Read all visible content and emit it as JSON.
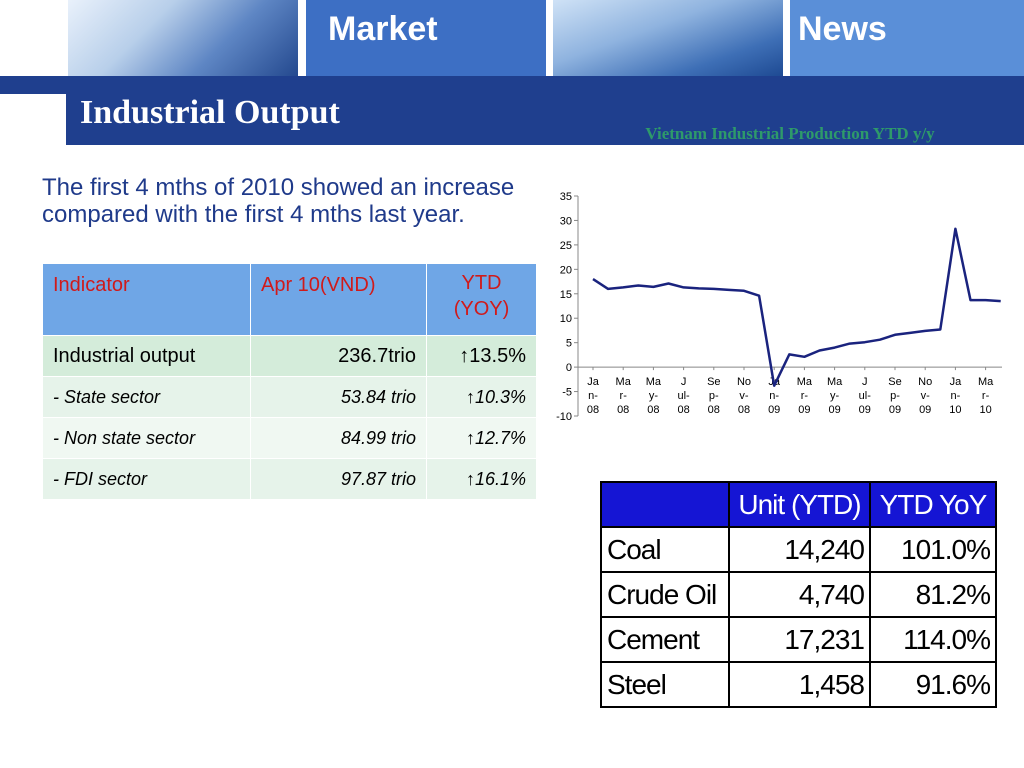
{
  "header": {
    "market_word": "Market",
    "news_word": "News",
    "title": "Industrial Output"
  },
  "intro_text": "The first 4 mths of 2010 showed an increase compared with the first 4 mths last year.",
  "indicator_table": {
    "headers": [
      "Indicator",
      "Apr 10(VND)",
      "YTD (YOY)"
    ],
    "rows": [
      [
        "Industrial output",
        "236.7trio",
        "↑13.5%"
      ],
      [
        "- State sector",
        "53.84 trio",
        "↑10.3%"
      ],
      [
        "- Non state sector",
        "84.99 trio",
        "↑12.7%"
      ],
      [
        "- FDI sector",
        "97.87 trio",
        "↑16.1%"
      ]
    ]
  },
  "chart_data": {
    "type": "line",
    "title": "Vietnam Industrial Production YTD y/y",
    "xlabel": "",
    "ylabel": "",
    "ylim": [
      -10,
      35
    ],
    "yticks": [
      "35",
      "30",
      "25",
      "20",
      "15",
      "10",
      "5",
      "0",
      "-5",
      "-10"
    ],
    "x_tick_labels": [
      [
        "Ja",
        "n-",
        "08"
      ],
      [
        "Ma",
        "r-",
        "08"
      ],
      [
        "Ma",
        "y-",
        "08"
      ],
      [
        "J",
        "ul-",
        "08"
      ],
      [
        "Se",
        "p-",
        "08"
      ],
      [
        "No",
        "v-",
        "08"
      ],
      [
        "Ja",
        "n-",
        "09"
      ],
      [
        "Ma",
        "r-",
        "09"
      ],
      [
        "Ma",
        "y-",
        "09"
      ],
      [
        "J",
        "ul-",
        "09"
      ],
      [
        "Se",
        "p-",
        "09"
      ],
      [
        "No",
        "v-",
        "09"
      ],
      [
        "Ja",
        "n-",
        "10"
      ],
      [
        "Ma",
        "r-",
        "10"
      ]
    ],
    "x": [
      "Jan-08",
      "Feb-08",
      "Mar-08",
      "Apr-08",
      "May-08",
      "Jun-08",
      "Jul-08",
      "Aug-08",
      "Sep-08",
      "Oct-08",
      "Nov-08",
      "Dec-08",
      "Jan-09",
      "Feb-09",
      "Mar-09",
      "Apr-09",
      "May-09",
      "Jun-09",
      "Jul-09",
      "Aug-09",
      "Sep-09",
      "Oct-09",
      "Nov-09",
      "Dec-09",
      "Jan-10",
      "Feb-10",
      "Mar-10",
      "Apr-10"
    ],
    "series": [
      {
        "color": "#1a237e",
        "values": [
          18.0,
          16.0,
          16.3,
          16.7,
          16.4,
          17.1,
          16.3,
          16.1,
          16.0,
          15.8,
          15.6,
          14.6,
          -3.8,
          2.6,
          2.1,
          3.4,
          4.0,
          4.8,
          5.1,
          5.6,
          6.6,
          7.0,
          7.4,
          7.7,
          28.3,
          13.7,
          13.7,
          13.5
        ]
      }
    ],
    "grid": false,
    "legend": "none"
  },
  "commodity_table": {
    "headers": [
      "",
      "Unit (YTD)",
      "YTD YoY"
    ],
    "rows": [
      [
        "Coal",
        "14,240",
        "101.0%"
      ],
      [
        "Crude Oil",
        "4,740",
        "81.2%"
      ],
      [
        "Cement",
        "17,231",
        "114.0%"
      ],
      [
        "Steel",
        "1,458",
        "91.6%"
      ]
    ]
  },
  "colors": {
    "header_blue": "#1f3f8e",
    "table_head_blue": "#6fa6e6",
    "table_head_red": "#d01a1a",
    "chart_title_green": "#2e9a6a",
    "commodity_head_blue": "#1515d4"
  }
}
